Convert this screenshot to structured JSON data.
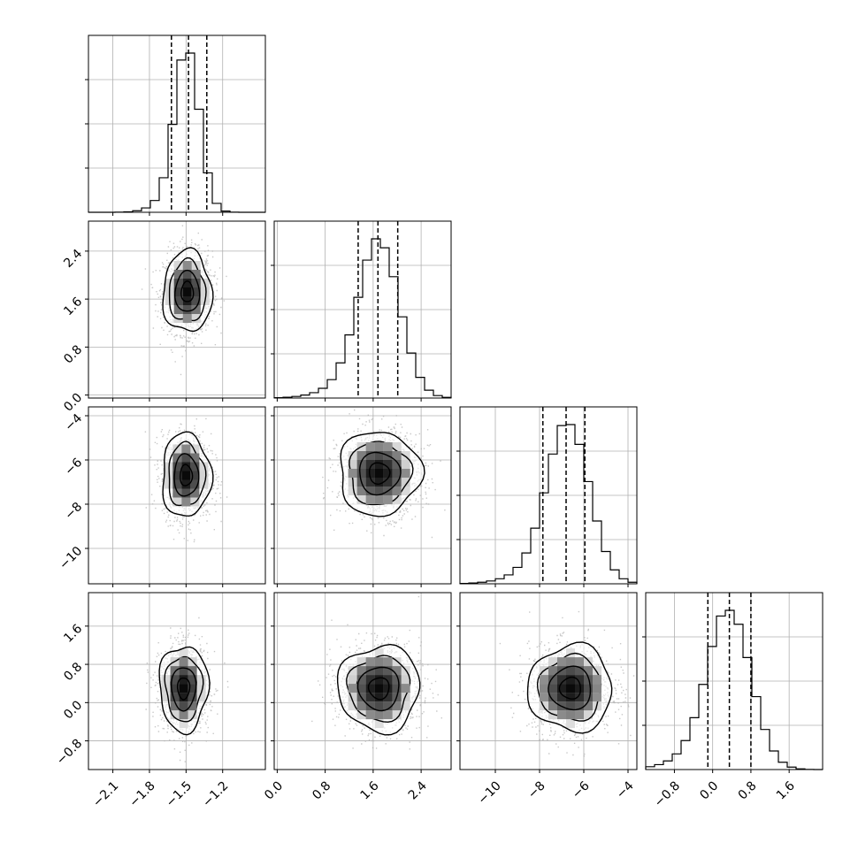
{
  "chart_data": {
    "type": "corner",
    "title": "",
    "parameters": [
      {
        "name": "",
        "range": [
          -2.3,
          -0.85
        ],
        "ticks": [
          -2.1,
          -1.8,
          -1.5,
          -1.2
        ],
        "tick_labels": [
          "−2.1",
          "−1.8",
          "−1.5",
          "−1.2"
        ],
        "quantiles": [
          -1.62,
          -1.48,
          -1.33
        ],
        "center": -1.49,
        "sigma": 0.1
      },
      {
        "name": "",
        "range": [
          -0.05,
          2.9
        ],
        "ticks": [
          0.0,
          0.8,
          1.6,
          2.4
        ],
        "tick_labels": [
          "0.0",
          "0.8",
          "1.6",
          "2.4"
        ],
        "quantiles": [
          1.35,
          1.68,
          2.01
        ],
        "center": 1.7,
        "sigma": 0.34
      },
      {
        "name": "",
        "range": [
          -11.6,
          -3.6
        ],
        "ticks": [
          -10,
          -8,
          -6,
          -4
        ],
        "tick_labels": [
          "−10",
          "−8",
          "−6",
          "−4"
        ],
        "quantiles": [
          -7.85,
          -6.8,
          -5.95
        ],
        "center": -6.7,
        "sigma": 0.95
      },
      {
        "name": "",
        "range": [
          -1.4,
          2.3
        ],
        "ticks": [
          -0.8,
          0.0,
          0.8,
          1.6
        ],
        "tick_labels": [
          "−0.8",
          "0.0",
          "0.8",
          "1.6"
        ],
        "quantiles": [
          -0.1,
          0.35,
          0.8
        ],
        "center": 0.35,
        "sigma": 0.45
      }
    ],
    "pairs": [
      {
        "x": 0,
        "y": 1,
        "center": [
          -1.49,
          1.72
        ]
      },
      {
        "x": 0,
        "y": 2,
        "center": [
          -1.5,
          -6.7
        ]
      },
      {
        "x": 1,
        "y": 2,
        "center": [
          1.7,
          -6.6
        ]
      },
      {
        "x": 0,
        "y": 3,
        "center": [
          -1.52,
          0.3
        ]
      },
      {
        "x": 1,
        "y": 3,
        "center": [
          1.7,
          0.3
        ]
      },
      {
        "x": 2,
        "y": 3,
        "center": [
          -6.6,
          0.3
        ]
      }
    ],
    "histogram_bins": 20,
    "grid": true,
    "colors": {
      "line": "#000000",
      "scatter": "#b0b0b0",
      "grid": "#b0b0b0",
      "density": "#000000"
    }
  }
}
